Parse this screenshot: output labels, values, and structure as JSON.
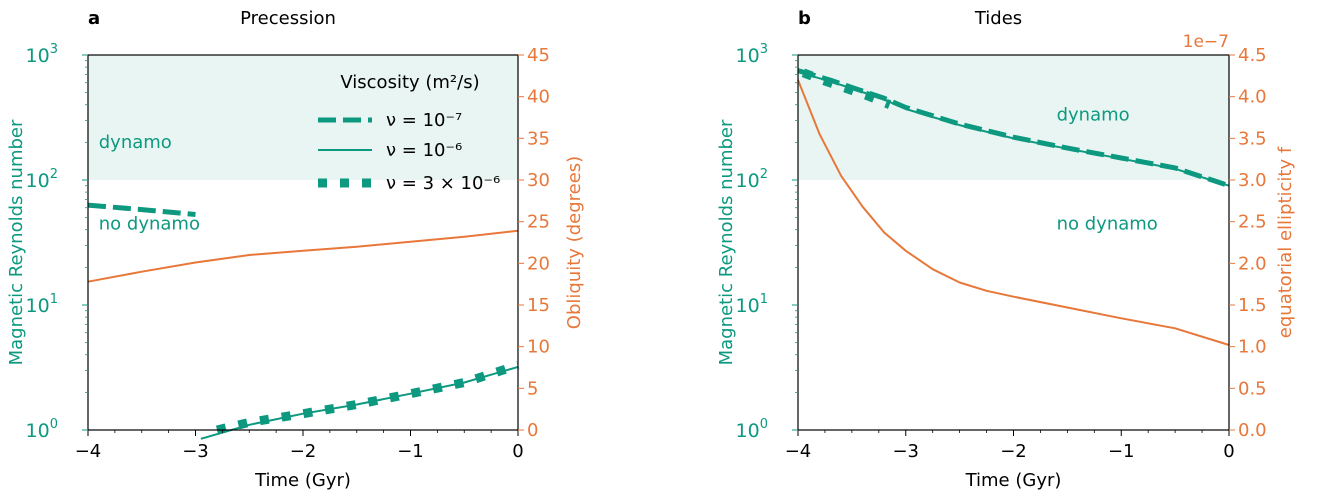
{
  "colors": {
    "teal": "#0d9980",
    "orange": "#e8773a",
    "band": "#e8f5f2",
    "axis": "#000000"
  },
  "chart_data": [
    {
      "type": "line",
      "panel_label": "a",
      "title": "Precession",
      "xlabel": "Time (Gyr)",
      "ylabel_left": "Magnetic Reynolds number",
      "ylabel_right": "Obliquity (degrees)",
      "xlim": [
        -4,
        0
      ],
      "ylim_left": [
        1,
        1000
      ],
      "ylim_right": [
        0,
        45
      ],
      "left_scale": "log",
      "x_ticks": [
        -4,
        -3,
        -2,
        -1,
        0
      ],
      "x_tick_labels": [
        "−4",
        "−3",
        "−2",
        "−1",
        "0"
      ],
      "left_ticks": [
        1,
        10,
        100,
        1000
      ],
      "left_tick_labels": [
        {
          "base": "10",
          "exp": "0"
        },
        {
          "base": "10",
          "exp": "1"
        },
        {
          "base": "10",
          "exp": "2"
        },
        {
          "base": "10",
          "exp": "3"
        }
      ],
      "right_ticks": [
        0,
        5,
        10,
        15,
        20,
        25,
        30,
        35,
        40,
        45
      ],
      "right_tick_labels": [
        "0",
        "5",
        "10",
        "15",
        "20",
        "25",
        "30",
        "35",
        "40",
        "45"
      ],
      "shaded_band": [
        100,
        1000
      ],
      "annotations": [
        {
          "text": "dynamo",
          "x": -3.9,
          "y": 180
        },
        {
          "text": "no dynamo",
          "x": -3.9,
          "y": 40
        }
      ],
      "legend": {
        "placement": "top-right",
        "title": "Viscosity (m²/s)",
        "entries": [
          {
            "label": "ν = 10⁻⁷",
            "style": "dashed"
          },
          {
            "label": "ν = 10⁻⁶",
            "style": "solid"
          },
          {
            "label": "ν = 3 × 10⁻⁶",
            "style": "dotted"
          }
        ]
      },
      "series": [
        {
          "name": "ν = 10⁻⁷",
          "axis": "left",
          "style": "dashed",
          "x": [
            -4,
            -3.5,
            -3
          ],
          "y": [
            63,
            58,
            53
          ]
        },
        {
          "name": "ν = 10⁻⁶",
          "axis": "left",
          "style": "solid",
          "x": [
            -2.95,
            -2.5,
            -2,
            -1.5,
            -1,
            -0.5,
            0
          ],
          "y": [
            0.85,
            1.1,
            1.35,
            1.6,
            1.95,
            2.4,
            3.2
          ]
        },
        {
          "name": "ν = 3 × 10⁻⁶",
          "axis": "left",
          "style": "dotted",
          "x": [
            -2.8,
            -2.5,
            -2,
            -1.5,
            -1,
            -0.5,
            0
          ],
          "y": [
            1.0,
            1.15,
            1.35,
            1.6,
            1.95,
            2.4,
            3.3
          ]
        },
        {
          "name": "",
          "axis": "right",
          "style": "orange",
          "x": [
            -4,
            -3.5,
            -3,
            -2.5,
            -2,
            -1.5,
            -1,
            -0.5,
            0
          ],
          "y": [
            17.8,
            19.0,
            20.1,
            21.0,
            21.5,
            22.0,
            22.6,
            23.2,
            23.9
          ]
        }
      ]
    },
    {
      "type": "line",
      "panel_label": "b",
      "title": "Tides",
      "xlabel": "Time (Gyr)",
      "ylabel_left": "Magnetic Reynolds number",
      "ylabel_right": "equatorial ellipticity f",
      "offset_text": "1e−7",
      "xlim": [
        -4,
        0
      ],
      "ylim_left": [
        1,
        1000
      ],
      "ylim_right": [
        0,
        4.5
      ],
      "left_scale": "log",
      "x_ticks": [
        -4,
        -3,
        -2,
        -1,
        0
      ],
      "x_tick_labels": [
        "−4",
        "−3",
        "−2",
        "−1",
        "0"
      ],
      "left_ticks": [
        1,
        10,
        100,
        1000
      ],
      "left_tick_labels": [
        {
          "base": "10",
          "exp": "0"
        },
        {
          "base": "10",
          "exp": "1"
        },
        {
          "base": "10",
          "exp": "2"
        },
        {
          "base": "10",
          "exp": "3"
        }
      ],
      "right_ticks": [
        0,
        0.5,
        1.0,
        1.5,
        2.0,
        2.5,
        3.0,
        3.5,
        4.0,
        4.5
      ],
      "right_tick_labels": [
        "0.0",
        "0.5",
        "1.0",
        "1.5",
        "2.0",
        "2.5",
        "3.0",
        "3.5",
        "4.0",
        "4.5"
      ],
      "shaded_band": [
        100,
        1000
      ],
      "annotations": [
        {
          "text": "dynamo",
          "x": -1.6,
          "y": 300
        },
        {
          "text": "no dynamo",
          "x": -1.6,
          "y": 40
        }
      ],
      "series": [
        {
          "name": "ν = 10⁻⁷",
          "axis": "left",
          "style": "dashed",
          "x": [
            -4,
            -3.7,
            -3.5,
            -3.2,
            -3,
            -2.5,
            -2,
            -1.5,
            -1,
            -0.5,
            0
          ],
          "y": [
            750,
            630,
            550,
            450,
            380,
            280,
            220,
            180,
            150,
            125,
            90
          ]
        },
        {
          "name": "ν = 10⁻⁶",
          "axis": "left",
          "style": "solid",
          "x": [
            -4,
            -3.7,
            -3.5,
            -3.2,
            -3,
            -2.5,
            -2,
            -1.5,
            -1,
            -0.5,
            0
          ],
          "y": [
            730,
            615,
            540,
            440,
            370,
            275,
            215,
            178,
            148,
            123,
            90
          ]
        },
        {
          "name": "ν = 3 × 10⁻⁶",
          "axis": "left",
          "style": "dotted",
          "x": [
            -3.95,
            -3.75,
            -3.55,
            -3.35,
            -3.15
          ],
          "y": [
            720,
            620,
            540,
            470,
            400
          ]
        },
        {
          "name": "",
          "axis": "right",
          "style": "orange",
          "x": [
            -4,
            -3.8,
            -3.6,
            -3.4,
            -3.2,
            -3,
            -2.75,
            -2.5,
            -2.25,
            -2,
            -1.5,
            -1,
            -0.5,
            0
          ],
          "y": [
            4.2,
            3.55,
            3.05,
            2.68,
            2.37,
            2.15,
            1.93,
            1.77,
            1.67,
            1.6,
            1.47,
            1.34,
            1.22,
            1.02
          ]
        }
      ]
    }
  ]
}
